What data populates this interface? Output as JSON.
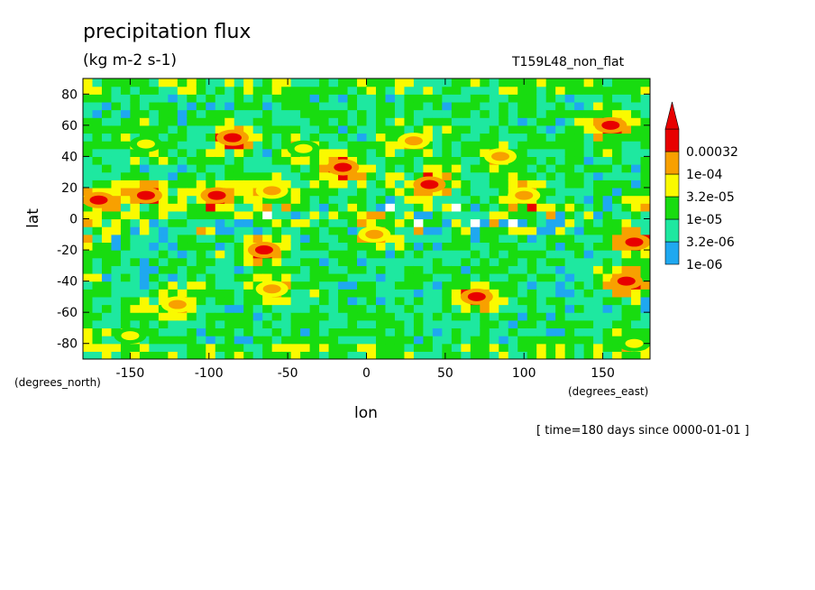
{
  "header": {
    "title": "precipitation flux",
    "units": "(kg m-2 s-1)",
    "run_name": "T159L48_non_flat"
  },
  "time_note": "[ time=180 days since 0000-01-01 ]",
  "colors": {
    "white": "#ffffff",
    "blue": "#1fa8f0",
    "cyan": "#1ee8a0",
    "green": "#18dc10",
    "yellow": "#fafa00",
    "orange": "#f8a000",
    "red": "#e80000"
  },
  "chart_data": {
    "type": "heatmap",
    "title": "precipitation flux",
    "subtitle": "(kg m-2 s-1)",
    "xlabel": "lon",
    "ylabel": "lat",
    "x_unit_label": "(degrees_east)",
    "y_unit_label": "(degrees_north)",
    "xlim": [
      -180,
      180
    ],
    "ylim": [
      -90,
      90
    ],
    "x_ticks": [
      -150,
      -100,
      -50,
      0,
      50,
      100,
      150
    ],
    "y_ticks": [
      -80,
      -60,
      -40,
      -20,
      0,
      20,
      40,
      60,
      80
    ],
    "colorbar": {
      "scale": "log",
      "levels": [
        "1e-06",
        "3.2e-06",
        "1e-05",
        "3.2e-05",
        "1e-04",
        "0.00032"
      ],
      "level_values": [
        1e-06,
        3.2e-06,
        1e-05,
        3.2e-05,
        0.0001,
        0.00032
      ],
      "colors": [
        "#1fa8f0",
        "#1ee8a0",
        "#18dc10",
        "#fafa00",
        "#f8a000",
        "#e80000"
      ],
      "below_min_color": "#ffffff",
      "extend": "max"
    },
    "features": [
      {
        "lon": -140,
        "lat": 48,
        "intensity": 3.2e-05
      },
      {
        "lon": -85,
        "lat": 52,
        "intensity": 0.00032
      },
      {
        "lon": -40,
        "lat": 45,
        "intensity": 3.2e-05
      },
      {
        "lon": -15,
        "lat": 33,
        "intensity": 0.00032
      },
      {
        "lon": 30,
        "lat": 50,
        "intensity": 0.0001
      },
      {
        "lon": 40,
        "lat": 22,
        "intensity": 0.00032
      },
      {
        "lon": 85,
        "lat": 40,
        "intensity": 0.0001
      },
      {
        "lon": 155,
        "lat": 60,
        "intensity": 0.00032
      },
      {
        "lon": -170,
        "lat": 12,
        "intensity": 0.00032
      },
      {
        "lon": -140,
        "lat": 15,
        "intensity": 0.00032
      },
      {
        "lon": -95,
        "lat": 15,
        "intensity": 0.00032
      },
      {
        "lon": -60,
        "lat": 18,
        "intensity": 0.0001
      },
      {
        "lon": -65,
        "lat": -20,
        "intensity": 0.00032
      },
      {
        "lon": 5,
        "lat": -10,
        "intensity": 0.0001
      },
      {
        "lon": 100,
        "lat": 15,
        "intensity": 0.0001
      },
      {
        "lon": 170,
        "lat": -15,
        "intensity": 0.00032
      },
      {
        "lon": -120,
        "lat": -55,
        "intensity": 0.0001
      },
      {
        "lon": -60,
        "lat": -45,
        "intensity": 0.0001
      },
      {
        "lon": 70,
        "lat": -50,
        "intensity": 0.00032
      },
      {
        "lon": 165,
        "lat": -40,
        "intensity": 0.00032
      },
      {
        "lon": -150,
        "lat": -75,
        "intensity": 3.2e-05
      },
      {
        "lon": 170,
        "lat": -80,
        "intensity": 3.2e-05
      }
    ]
  }
}
